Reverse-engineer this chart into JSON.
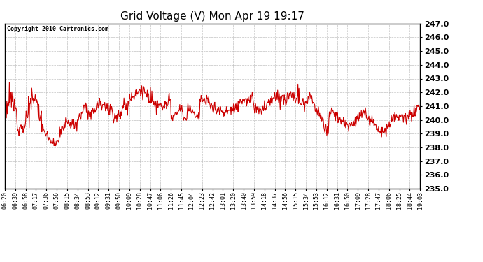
{
  "title": "Grid Voltage (V) Mon Apr 19 19:17",
  "copyright": "Copyright 2010 Cartronics.com",
  "ylim": [
    235.0,
    247.0
  ],
  "yticks": [
    235.0,
    236.0,
    237.0,
    238.0,
    239.0,
    240.0,
    241.0,
    242.0,
    243.0,
    244.0,
    245.0,
    246.0,
    247.0
  ],
  "line_color": "#cc0000",
  "bg_color": "#ffffff",
  "plot_bg_color": "#ffffff",
  "grid_color": "#bbbbbb",
  "xtick_labels": [
    "06:20",
    "06:39",
    "06:58",
    "07:17",
    "07:36",
    "07:56",
    "08:15",
    "08:34",
    "08:53",
    "09:12",
    "09:31",
    "09:50",
    "10:09",
    "10:28",
    "10:47",
    "11:06",
    "11:26",
    "11:45",
    "12:04",
    "12:23",
    "12:42",
    "13:01",
    "13:20",
    "13:40",
    "13:59",
    "14:18",
    "14:37",
    "14:56",
    "15:15",
    "15:34",
    "15:53",
    "16:12",
    "16:31",
    "16:50",
    "17:09",
    "17:28",
    "17:47",
    "18:06",
    "18:25",
    "18:44",
    "19:03"
  ],
  "title_fontsize": 11,
  "ytick_fontsize": 8,
  "xtick_fontsize": 6,
  "copyright_fontsize": 6,
  "linewidth": 0.8
}
